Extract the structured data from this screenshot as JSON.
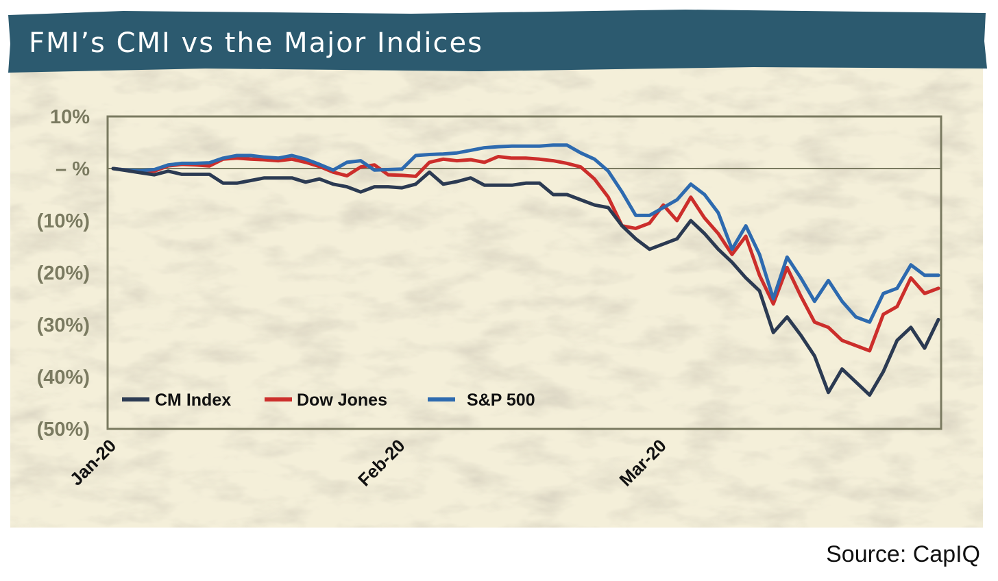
{
  "title": "FMI’s CMI vs the Major Indices",
  "source": "Source: CapIQ",
  "colors": {
    "title_bar": "#2c5a6f",
    "panel_bg": "#f4efd9",
    "axis": "#7a7a60",
    "cm_index": "#2b3a52",
    "dow_jones": "#cc2e2b",
    "sp500": "#2d6aaf"
  },
  "chart_data": {
    "type": "line",
    "title": "FMI’s CMI vs the Major Indices",
    "xlabel": "",
    "ylabel": "",
    "ylim": [
      -50,
      10
    ],
    "grid": false,
    "legend_position": "bottom-left",
    "x_ticks": [
      {
        "label": "Jan-20",
        "index": 0
      },
      {
        "label": "Feb-20",
        "index": 21
      },
      {
        "label": "Mar-20",
        "index": 40
      }
    ],
    "y_ticks": [
      {
        "label": "10%",
        "value": 10
      },
      {
        "label": "– %",
        "value": 0
      },
      {
        "label": "(10%)",
        "value": -10
      },
      {
        "label": "(20%)",
        "value": -20
      },
      {
        "label": "(30%)",
        "value": -30
      },
      {
        "label": "(40%)",
        "value": -40
      },
      {
        "label": "(50%)",
        "value": -50
      }
    ],
    "x_count": 61,
    "series": [
      {
        "name": "CM Index",
        "key": "cm_index",
        "values": [
          0,
          -0.4,
          -0.8,
          -1.2,
          -0.5,
          -1.1,
          -1.1,
          -1.1,
          -2.8,
          -2.8,
          -2.3,
          -1.8,
          -1.8,
          -1.8,
          -2.6,
          -2.0,
          -3.0,
          -3.5,
          -4.5,
          -3.5,
          -3.5,
          -3.7,
          -3.0,
          -0.7,
          -3.0,
          -2.5,
          -1.8,
          -3.2,
          -3.2,
          -3.2,
          -2.8,
          -2.8,
          -5.0,
          -5.0,
          -6.0,
          -7.0,
          -7.5,
          -11.0,
          -13.5,
          -15.5,
          -14.5,
          -13.5,
          -10.0,
          -12.5,
          -15.5,
          -18.0,
          -21.0,
          -23.5,
          -31.5,
          -28.5,
          -32.0,
          -36.0,
          -43.0,
          -38.5,
          -41.0,
          -43.5,
          -39.0,
          -33.0,
          -30.5,
          -34.5,
          -29.0
        ]
      },
      {
        "name": "Dow Jones",
        "key": "dow_jones",
        "values": [
          0,
          -0.3,
          -0.5,
          -0.5,
          0.5,
          0.8,
          0.7,
          0.5,
          1.8,
          2.0,
          1.8,
          1.7,
          1.5,
          1.8,
          1.2,
          0.4,
          -0.7,
          -1.4,
          0.3,
          0.7,
          -1.2,
          -1.3,
          -1.5,
          1.2,
          1.8,
          1.5,
          1.7,
          1.2,
          2.3,
          2.0,
          2.0,
          1.8,
          1.5,
          1.0,
          0.3,
          -2.0,
          -5.5,
          -11.0,
          -11.5,
          -10.5,
          -7.0,
          -10.0,
          -5.5,
          -9.5,
          -12.5,
          -16.5,
          -13.0,
          -20.5,
          -26.0,
          -19.0,
          -24.5,
          -29.5,
          -30.5,
          -33.0,
          -34.0,
          -35.0,
          -28.0,
          -26.5,
          -21.0,
          -24.0,
          -23.0
        ]
      },
      {
        "name": "S&P 500",
        "key": "sp500",
        "values": [
          0,
          -0.3,
          -0.4,
          -0.2,
          0.7,
          1.0,
          1.0,
          1.1,
          2.0,
          2.5,
          2.5,
          2.2,
          2.0,
          2.5,
          1.8,
          0.8,
          -0.3,
          1.2,
          1.5,
          -0.3,
          -0.2,
          -0.1,
          2.5,
          2.7,
          2.8,
          3.0,
          3.5,
          4.0,
          4.2,
          4.3,
          4.3,
          4.3,
          4.5,
          4.5,
          3.0,
          1.8,
          -0.5,
          -4.5,
          -9.0,
          -9.0,
          -7.5,
          -6.0,
          -3.0,
          -5.0,
          -8.5,
          -15.5,
          -11.0,
          -16.5,
          -25.0,
          -17.0,
          -21.0,
          -25.5,
          -21.5,
          -25.5,
          -28.5,
          -29.5,
          -24.0,
          -23.0,
          -18.5,
          -20.5,
          -20.5
        ]
      }
    ]
  }
}
